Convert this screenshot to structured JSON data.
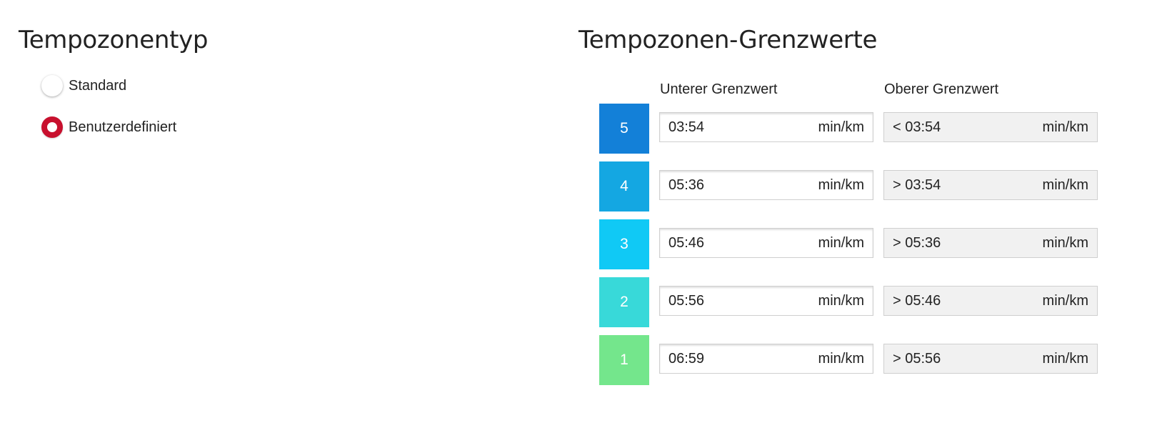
{
  "zone_type": {
    "title": "Tempozonentyp",
    "options": [
      {
        "label": "Standard",
        "selected": false
      },
      {
        "label": "Benutzerdefiniert",
        "selected": true
      }
    ]
  },
  "limits": {
    "title": "Tempozonen-Grenzwerte",
    "lower_header": "Unterer Grenzwert",
    "upper_header": "Oberer Grenzwert",
    "unit": "min/km",
    "zones": [
      {
        "number": "5",
        "color": "#1380d8",
        "lower": "03:54",
        "upper": "< 03:54"
      },
      {
        "number": "4",
        "color": "#14a7e2",
        "lower": "05:36",
        "upper": "> 03:54"
      },
      {
        "number": "3",
        "color": "#10c9f5",
        "lower": "05:46",
        "upper": "> 05:36"
      },
      {
        "number": "2",
        "color": "#38d9d9",
        "lower": "05:56",
        "upper": "> 05:46"
      },
      {
        "number": "1",
        "color": "#74e68c",
        "lower": "06:59",
        "upper": "> 05:56"
      }
    ]
  }
}
